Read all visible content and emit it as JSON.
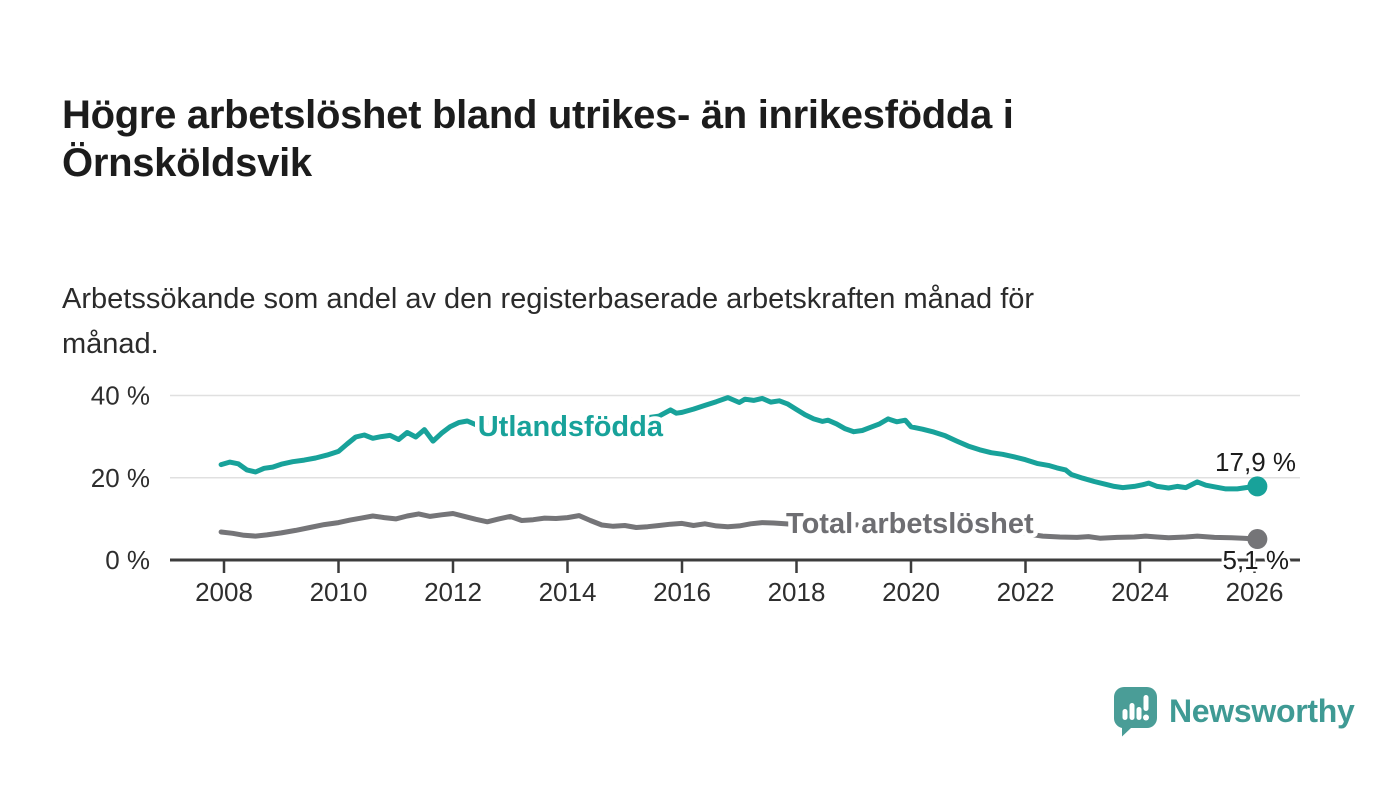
{
  "header": {
    "title": "Högre arbetslöshet bland utrikes- än inrikesfödda i\nÖrnsköldsvik",
    "subtitle": "Arbetssökande som andel av den registerbaserade arbetskraften månad för\nmånad."
  },
  "footer": {
    "brand": "Newsworthy",
    "brand_color": "#3f9a94",
    "logo_icon": "bar-chart-speech-bubble-icon"
  },
  "colors": {
    "foreign_born_line": "#18a29a",
    "total_line": "#757578",
    "total_label": "#6e6e72",
    "axis": "#3c3c3c",
    "grid": "#e0e0e0",
    "tick_text": "#2e2e2e",
    "value_text": "#1c1c1c",
    "background": "#ffffff"
  },
  "chart_data": {
    "type": "line",
    "title": "Högre arbetslöshet bland utrikes- än inrikesfödda i Örnsköldsvik",
    "subtitle": "Arbetssökande som andel av den registerbaserade arbetskraften månad för månad.",
    "xlabel": "",
    "ylabel": "",
    "grid": "horizontal",
    "legend_position": "inline-labels",
    "xlim": [
      2007.6,
      2026.8
    ],
    "ylim": [
      0,
      44
    ],
    "x_ticks": [
      2008,
      2010,
      2012,
      2014,
      2016,
      2018,
      2020,
      2022,
      2024,
      2026
    ],
    "y_ticks": [
      {
        "value": 0,
        "label": "0 %"
      },
      {
        "value": 20,
        "label": "20 %"
      },
      {
        "value": 40,
        "label": "40 %"
      }
    ],
    "series": [
      {
        "name": "Utlandsfödda",
        "color": "#18a29a",
        "end_label": "17,9 %",
        "end_value": 17.9,
        "label_anchor": [
          2014.05,
          30.2
        ],
        "points": [
          [
            2007.95,
            23.2
          ],
          [
            2008.1,
            23.8
          ],
          [
            2008.25,
            23.4
          ],
          [
            2008.4,
            21.9
          ],
          [
            2008.55,
            21.4
          ],
          [
            2008.7,
            22.3
          ],
          [
            2008.85,
            22.6
          ],
          [
            2009.0,
            23.3
          ],
          [
            2009.2,
            23.9
          ],
          [
            2009.4,
            24.3
          ],
          [
            2009.6,
            24.8
          ],
          [
            2009.8,
            25.5
          ],
          [
            2010.0,
            26.4
          ],
          [
            2010.15,
            28.2
          ],
          [
            2010.3,
            29.9
          ],
          [
            2010.45,
            30.4
          ],
          [
            2010.6,
            29.6
          ],
          [
            2010.75,
            30.0
          ],
          [
            2010.9,
            30.3
          ],
          [
            2011.05,
            29.3
          ],
          [
            2011.2,
            31.0
          ],
          [
            2011.35,
            29.9
          ],
          [
            2011.5,
            31.7
          ],
          [
            2011.65,
            28.9
          ],
          [
            2011.8,
            30.8
          ],
          [
            2011.95,
            32.4
          ],
          [
            2012.1,
            33.4
          ],
          [
            2012.25,
            33.8
          ],
          [
            2012.4,
            32.9
          ],
          [
            2012.6,
            33.4
          ],
          [
            2012.8,
            32.6
          ],
          [
            2013.0,
            31.4
          ],
          [
            2013.2,
            30.7
          ],
          [
            2013.4,
            31.4
          ],
          [
            2013.6,
            32.3
          ],
          [
            2013.8,
            33.1
          ],
          [
            2014.0,
            32.4
          ],
          [
            2014.2,
            33.3
          ],
          [
            2014.4,
            34.0
          ],
          [
            2014.6,
            33.4
          ],
          [
            2014.8,
            33.6
          ],
          [
            2015.0,
            33.9
          ],
          [
            2015.2,
            34.2
          ],
          [
            2015.4,
            34.6
          ],
          [
            2015.6,
            35.0
          ],
          [
            2015.8,
            36.5
          ],
          [
            2015.9,
            35.7
          ],
          [
            2016.0,
            35.9
          ],
          [
            2016.2,
            36.7
          ],
          [
            2016.4,
            37.6
          ],
          [
            2016.6,
            38.5
          ],
          [
            2016.8,
            39.5
          ],
          [
            2016.9,
            38.9
          ],
          [
            2017.0,
            38.3
          ],
          [
            2017.1,
            39.1
          ],
          [
            2017.25,
            38.8
          ],
          [
            2017.4,
            39.3
          ],
          [
            2017.55,
            38.4
          ],
          [
            2017.7,
            38.7
          ],
          [
            2017.85,
            37.9
          ],
          [
            2018.0,
            36.6
          ],
          [
            2018.15,
            35.3
          ],
          [
            2018.3,
            34.3
          ],
          [
            2018.45,
            33.7
          ],
          [
            2018.55,
            34.0
          ],
          [
            2018.7,
            33.1
          ],
          [
            2018.85,
            31.9
          ],
          [
            2019.0,
            31.2
          ],
          [
            2019.15,
            31.5
          ],
          [
            2019.3,
            32.3
          ],
          [
            2019.45,
            33.1
          ],
          [
            2019.6,
            34.3
          ],
          [
            2019.75,
            33.6
          ],
          [
            2019.9,
            34.0
          ],
          [
            2020.0,
            32.4
          ],
          [
            2020.2,
            31.8
          ],
          [
            2020.4,
            31.1
          ],
          [
            2020.6,
            30.2
          ],
          [
            2020.8,
            28.9
          ],
          [
            2021.0,
            27.7
          ],
          [
            2021.2,
            26.8
          ],
          [
            2021.4,
            26.1
          ],
          [
            2021.6,
            25.7
          ],
          [
            2021.8,
            25.1
          ],
          [
            2022.0,
            24.4
          ],
          [
            2022.2,
            23.5
          ],
          [
            2022.4,
            23.0
          ],
          [
            2022.55,
            22.4
          ],
          [
            2022.7,
            21.9
          ],
          [
            2022.8,
            20.8
          ],
          [
            2023.0,
            19.9
          ],
          [
            2023.2,
            19.1
          ],
          [
            2023.4,
            18.4
          ],
          [
            2023.55,
            17.9
          ],
          [
            2023.7,
            17.6
          ],
          [
            2023.9,
            17.9
          ],
          [
            2024.05,
            18.3
          ],
          [
            2024.15,
            18.7
          ],
          [
            2024.3,
            17.9
          ],
          [
            2024.5,
            17.5
          ],
          [
            2024.65,
            17.9
          ],
          [
            2024.8,
            17.6
          ],
          [
            2025.0,
            19.0
          ],
          [
            2025.15,
            18.2
          ],
          [
            2025.3,
            17.8
          ],
          [
            2025.5,
            17.3
          ],
          [
            2025.7,
            17.3
          ],
          [
            2025.85,
            17.6
          ],
          [
            2026.05,
            17.9
          ]
        ]
      },
      {
        "name": "Total arbetslöshet",
        "color": "#757578",
        "end_label": "5,1 %",
        "end_value": 5.1,
        "label_anchor": [
          2019.98,
          6.6
        ],
        "points": [
          [
            2007.95,
            6.8
          ],
          [
            2008.15,
            6.5
          ],
          [
            2008.35,
            6.0
          ],
          [
            2008.55,
            5.8
          ],
          [
            2008.75,
            6.1
          ],
          [
            2009.0,
            6.6
          ],
          [
            2009.25,
            7.2
          ],
          [
            2009.5,
            7.9
          ],
          [
            2009.75,
            8.6
          ],
          [
            2010.0,
            9.1
          ],
          [
            2010.2,
            9.7
          ],
          [
            2010.4,
            10.2
          ],
          [
            2010.6,
            10.7
          ],
          [
            2010.8,
            10.3
          ],
          [
            2011.0,
            10.0
          ],
          [
            2011.2,
            10.7
          ],
          [
            2011.4,
            11.2
          ],
          [
            2011.6,
            10.6
          ],
          [
            2011.8,
            11.0
          ],
          [
            2012.0,
            11.3
          ],
          [
            2012.2,
            10.6
          ],
          [
            2012.4,
            9.9
          ],
          [
            2012.6,
            9.3
          ],
          [
            2012.8,
            10.0
          ],
          [
            2013.0,
            10.6
          ],
          [
            2013.2,
            9.6
          ],
          [
            2013.4,
            9.8
          ],
          [
            2013.6,
            10.2
          ],
          [
            2013.8,
            10.1
          ],
          [
            2014.0,
            10.3
          ],
          [
            2014.2,
            10.8
          ],
          [
            2014.4,
            9.6
          ],
          [
            2014.6,
            8.5
          ],
          [
            2014.8,
            8.2
          ],
          [
            2015.0,
            8.4
          ],
          [
            2015.2,
            7.9
          ],
          [
            2015.4,
            8.1
          ],
          [
            2015.6,
            8.4
          ],
          [
            2015.8,
            8.7
          ],
          [
            2016.0,
            8.9
          ],
          [
            2016.2,
            8.4
          ],
          [
            2016.4,
            8.8
          ],
          [
            2016.6,
            8.3
          ],
          [
            2016.8,
            8.1
          ],
          [
            2017.0,
            8.3
          ],
          [
            2017.2,
            8.8
          ],
          [
            2017.4,
            9.1
          ],
          [
            2017.6,
            9.0
          ],
          [
            2017.8,
            8.8
          ],
          [
            2018.0,
            8.6
          ],
          [
            2018.4,
            8.4
          ],
          [
            2018.8,
            8.6
          ],
          [
            2019.2,
            8.5
          ],
          [
            2019.6,
            8.6
          ],
          [
            2020.0,
            9.0
          ],
          [
            2020.4,
            9.6
          ],
          [
            2020.8,
            9.3
          ],
          [
            2021.2,
            8.4
          ],
          [
            2021.6,
            7.4
          ],
          [
            2021.9,
            6.8
          ],
          [
            2022.1,
            6.2
          ],
          [
            2022.3,
            5.8
          ],
          [
            2022.6,
            5.6
          ],
          [
            2022.9,
            5.5
          ],
          [
            2023.1,
            5.7
          ],
          [
            2023.3,
            5.3
          ],
          [
            2023.6,
            5.5
          ],
          [
            2023.9,
            5.6
          ],
          [
            2024.1,
            5.8
          ],
          [
            2024.3,
            5.6
          ],
          [
            2024.5,
            5.4
          ],
          [
            2024.8,
            5.6
          ],
          [
            2025.0,
            5.8
          ],
          [
            2025.3,
            5.5
          ],
          [
            2025.6,
            5.4
          ],
          [
            2025.8,
            5.3
          ],
          [
            2026.05,
            5.1
          ]
        ]
      }
    ]
  }
}
